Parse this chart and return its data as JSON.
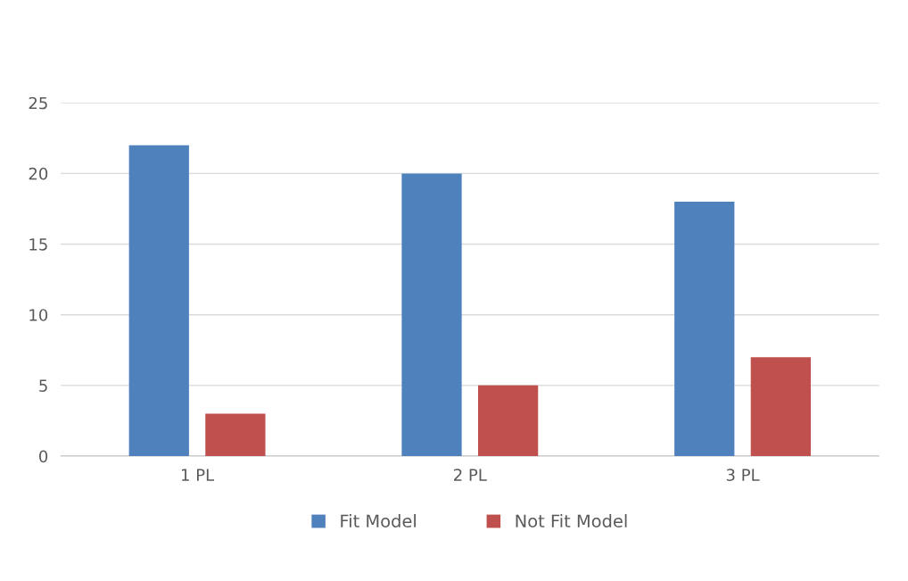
{
  "chart_data": {
    "type": "bar",
    "categories": [
      "1 PL",
      "2 PL",
      "3 PL"
    ],
    "series": [
      {
        "name": "Fit Model",
        "color": "#4f81bd",
        "values": [
          22,
          20,
          18
        ]
      },
      {
        "name": "Not Fit Model",
        "color": "#c0504d",
        "values": [
          3,
          5,
          7
        ]
      }
    ],
    "ylim": [
      0,
      25
    ],
    "yticks": [
      0,
      5,
      10,
      15,
      20,
      25
    ],
    "grid": "y",
    "legend": "bottom"
  }
}
